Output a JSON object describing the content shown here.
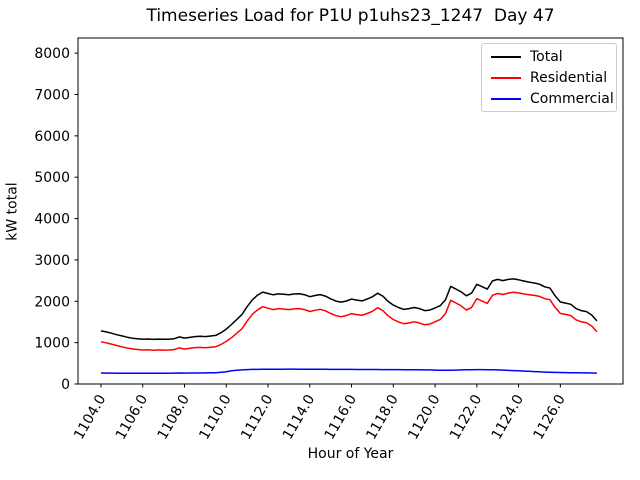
{
  "chart_data": {
    "type": "line",
    "title": "Timeseries Load for P1U p1uhs23_1247  Day 47",
    "xlabel": "Hour of Year",
    "ylabel": "kW total",
    "xlim": [
      1102.9,
      1129.0
    ],
    "ylim": [
      0,
      8366
    ],
    "grid": false,
    "legend_position": "upper right",
    "xticks": [
      1104,
      1106,
      1108,
      1110,
      1112,
      1114,
      1116,
      1118,
      1120,
      1122,
      1124,
      1126
    ],
    "xtick_labels": [
      "1104.0",
      "1106.0",
      "1108.0",
      "1110.0",
      "1112.0",
      "1114.0",
      "1116.0",
      "1118.0",
      "1120.0",
      "1122.0",
      "1124.0",
      "1126.0"
    ],
    "xtick_rotation_deg": 60,
    "yticks": [
      0,
      1000,
      2000,
      3000,
      4000,
      5000,
      6000,
      7000,
      8000
    ],
    "ytick_labels": [
      "0",
      "1000",
      "2000",
      "3000",
      "4000",
      "5000",
      "6000",
      "7000",
      "8000"
    ],
    "x": [
      1104.0,
      1104.25,
      1104.5,
      1104.75,
      1105.0,
      1105.25,
      1105.5,
      1105.75,
      1106.0,
      1106.25,
      1106.5,
      1106.75,
      1107.0,
      1107.25,
      1107.5,
      1107.75,
      1108.0,
      1108.25,
      1108.5,
      1108.75,
      1109.0,
      1109.25,
      1109.5,
      1109.75,
      1110.0,
      1110.25,
      1110.5,
      1110.75,
      1111.0,
      1111.25,
      1111.5,
      1111.75,
      1112.0,
      1112.25,
      1112.5,
      1112.75,
      1113.0,
      1113.25,
      1113.5,
      1113.75,
      1114.0,
      1114.25,
      1114.5,
      1114.75,
      1115.0,
      1115.25,
      1115.5,
      1115.75,
      1116.0,
      1116.25,
      1116.5,
      1116.75,
      1117.0,
      1117.25,
      1117.5,
      1117.75,
      1118.0,
      1118.25,
      1118.5,
      1118.75,
      1119.0,
      1119.25,
      1119.5,
      1119.75,
      1120.0,
      1120.25,
      1120.5,
      1120.75,
      1121.0,
      1121.25,
      1121.5,
      1121.75,
      1122.0,
      1122.25,
      1122.5,
      1122.75,
      1123.0,
      1123.25,
      1123.5,
      1123.75,
      1124.0,
      1124.25,
      1124.5,
      1124.75,
      1125.0,
      1125.25,
      1125.5,
      1125.75,
      1126.0,
      1126.25,
      1126.5,
      1126.75,
      1127.0,
      1127.25,
      1127.5,
      1127.75
    ],
    "series": [
      {
        "name": "Total",
        "color": "#000000",
        "values": [
          1285,
          1259,
          1228,
          1192,
          1162,
          1131,
          1108,
          1095,
          1082,
          1089,
          1078,
          1085,
          1082,
          1084,
          1095,
          1140,
          1109,
          1127,
          1146,
          1153,
          1146,
          1160,
          1174,
          1240,
          1328,
          1438,
          1557,
          1677,
          1868,
          2037,
          2149,
          2223,
          2188,
          2156,
          2179,
          2170,
          2158,
          2175,
          2181,
          2158,
          2110,
          2139,
          2161,
          2125,
          2059,
          2005,
          1980,
          2007,
          2054,
          2029,
          2010,
          2055,
          2108,
          2195,
          2124,
          1996,
          1908,
          1849,
          1804,
          1822,
          1850,
          1822,
          1774,
          1788,
          1841,
          1896,
          2035,
          2359,
          2294,
          2228,
          2132,
          2198,
          2410,
          2353,
          2294,
          2492,
          2528,
          2501,
          2528,
          2542,
          2520,
          2490,
          2464,
          2442,
          2412,
          2350,
          2322,
          2132,
          1982,
          1957,
          1928,
          1823,
          1774,
          1750,
          1668,
          1526
        ]
      },
      {
        "name": "Residential",
        "color": "#ff0000",
        "values": [
          1020,
          995,
          965,
          930,
          900,
          870,
          848,
          835,
          822,
          828,
          818,
          824,
          820,
          822,
          832,
          875,
          845,
          862,
          880,
          886,
          878,
          890,
          902,
          958,
          1030,
          1120,
          1225,
          1335,
          1520,
          1685,
          1795,
          1868,
          1832,
          1800,
          1822,
          1812,
          1798,
          1815,
          1822,
          1800,
          1752,
          1782,
          1805,
          1770,
          1705,
          1652,
          1628,
          1655,
          1702,
          1678,
          1660,
          1705,
          1758,
          1845,
          1775,
          1648,
          1560,
          1502,
          1458,
          1476,
          1505,
          1478,
          1432,
          1448,
          1505,
          1562,
          1702,
          2025,
          1958,
          1888,
          1788,
          1852,
          2062,
          2005,
          1948,
          2148,
          2188,
          2165,
          2198,
          2218,
          2202,
          2178,
          2158,
          2142,
          2118,
          2062,
          2038,
          1852,
          1705,
          1682,
          1655,
          1552,
          1505,
          1482,
          1402,
          1262
        ]
      },
      {
        "name": "Commercial",
        "color": "#0000ff",
        "values": [
          265,
          264,
          263,
          262,
          262,
          261,
          260,
          260,
          260,
          261,
          260,
          261,
          262,
          262,
          263,
          265,
          264,
          265,
          266,
          267,
          268,
          270,
          272,
          282,
          298,
          318,
          332,
          342,
          348,
          352,
          354,
          355,
          356,
          356,
          357,
          358,
          360,
          360,
          359,
          358,
          358,
          357,
          356,
          355,
          354,
          353,
          352,
          352,
          352,
          351,
          350,
          350,
          350,
          350,
          349,
          348,
          348,
          347,
          346,
          346,
          345,
          344,
          342,
          340,
          336,
          334,
          333,
          334,
          336,
          340,
          344,
          346,
          348,
          348,
          346,
          344,
          340,
          336,
          330,
          324,
          318,
          312,
          306,
          300,
          294,
          288,
          284,
          280,
          277,
          275,
          273,
          271,
          269,
          268,
          266,
          264
        ]
      }
    ]
  }
}
